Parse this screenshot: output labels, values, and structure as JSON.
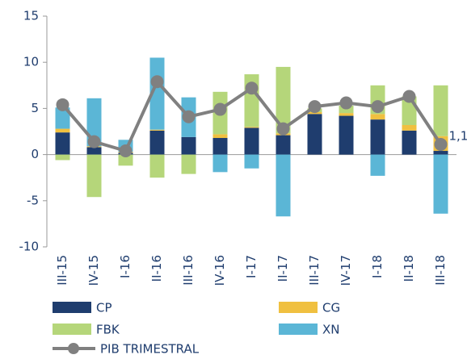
{
  "chart_data": {
    "type": "bar",
    "categories": [
      "III-15",
      "IV-15",
      "I-16",
      "II-16",
      "III-16",
      "IV-16",
      "I-17",
      "II-17",
      "III-17",
      "IV-17",
      "I-18",
      "II-18",
      "III-18"
    ],
    "series": [
      {
        "name": "CP",
        "color": "#1f3d6e",
        "values": [
          2.4,
          0.8,
          0.2,
          2.6,
          1.9,
          1.8,
          2.9,
          2.1,
          4.4,
          4.2,
          3.8,
          2.6,
          0.4
        ]
      },
      {
        "name": "CG",
        "color": "#f0c040",
        "values": [
          0.4,
          0.1,
          0.1,
          0.1,
          0,
          0.4,
          0.1,
          0.2,
          0.2,
          0.3,
          0.6,
          0.6,
          1.6
        ]
      },
      {
        "name": "FBK",
        "color": "#b5d67a",
        "values": [
          -0.6,
          -4.6,
          -1.2,
          -2.5,
          -2.1,
          4.6,
          5.7,
          7.2,
          0.4,
          0.8,
          3.1,
          3.1,
          5.5
        ]
      },
      {
        "name": "XN",
        "color": "#5bb6d6",
        "values": [
          2.3,
          5.2,
          1.3,
          7.8,
          4.3,
          -1.9,
          -1.5,
          -6.7,
          0,
          0,
          -2.3,
          0,
          -6.4
        ]
      },
      {
        "name": "PIB TRIMESTRAL",
        "type": "line",
        "color": "#808080",
        "values": [
          5.4,
          1.4,
          0.4,
          7.9,
          4.1,
          4.9,
          7.2,
          2.8,
          5.2,
          5.6,
          5.2,
          6.3,
          1.1
        ],
        "value_labels": [
          null,
          null,
          null,
          null,
          null,
          null,
          null,
          null,
          null,
          null,
          null,
          null,
          "1,1"
        ]
      }
    ],
    "ylim": [
      -10,
      15
    ],
    "yticks": [
      -10,
      -5,
      0,
      5,
      10,
      15
    ]
  }
}
